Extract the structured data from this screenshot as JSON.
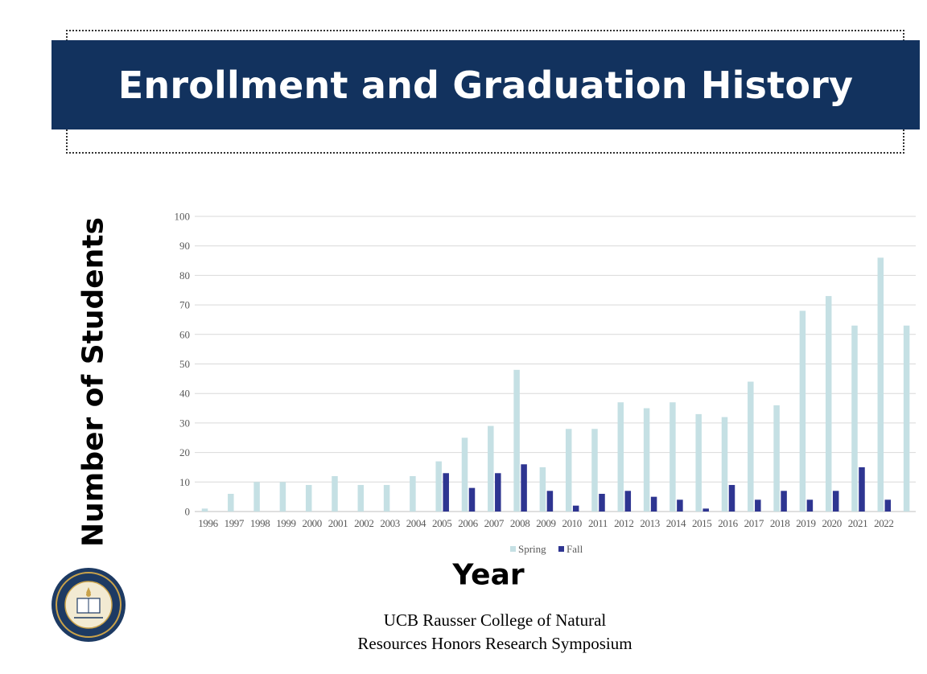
{
  "slide": {
    "title": "Enrollment and Graduation History",
    "footer_line1": "UCB Rausser College of Natural",
    "footer_line2": "Resources Honors Research Symposium"
  },
  "colors": {
    "banner": "#12325e",
    "spring": "#c5e0e4",
    "fall": "#2e3591"
  },
  "chart_data": {
    "type": "bar",
    "xlabel": "Year",
    "ylabel": "Number of Students",
    "ylim": [
      0,
      100
    ],
    "yticks": [
      0,
      10,
      20,
      30,
      40,
      50,
      60,
      70,
      80,
      90,
      100
    ],
    "grid": true,
    "legend_position": "bottom",
    "categories": [
      "1996",
      "1997",
      "1998",
      "1999",
      "2000",
      "2001",
      "2002",
      "2003",
      "2004",
      "2005",
      "2006",
      "2007",
      "2008",
      "2009",
      "2010",
      "2011",
      "2012",
      "2013",
      "2014",
      "2015",
      "2016",
      "2017",
      "2018",
      "2019",
      "2020",
      "2021",
      "2022",
      ""
    ],
    "series": [
      {
        "name": "Spring",
        "values": [
          1,
          6,
          10,
          10,
          9,
          12,
          9,
          9,
          12,
          17,
          25,
          29,
          48,
          15,
          28,
          28,
          37,
          35,
          37,
          33,
          32,
          44,
          36,
          68,
          73,
          63,
          86,
          63
        ]
      },
      {
        "name": "Fall",
        "values": [
          0,
          0,
          0,
          0,
          0,
          0,
          0,
          0,
          0,
          13,
          8,
          13,
          16,
          7,
          2,
          6,
          7,
          5,
          4,
          1,
          9,
          4,
          7,
          4,
          7,
          15,
          4,
          null
        ]
      }
    ]
  }
}
